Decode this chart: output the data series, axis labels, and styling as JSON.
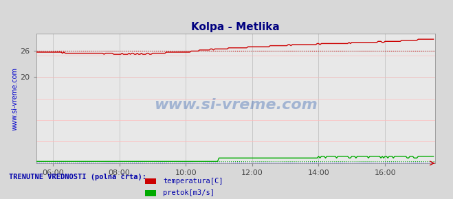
{
  "title": "Kolpa - Metlika",
  "title_color": "#000080",
  "title_fontsize": 11,
  "bg_color": "#d8d8d8",
  "plot_bg_color": "#e8e8e8",
  "xlabel": "",
  "ylabel_left": "www.si-vreme.com",
  "ylabel_color": "#0000cc",
  "xlim": [
    0,
    288
  ],
  "ylim": [
    0,
    30
  ],
  "yticks": [
    20,
    26
  ],
  "xtick_labels": [
    "06:00",
    "08:00",
    "10:00",
    "12:00",
    "14:00",
    "16:00"
  ],
  "xtick_positions": [
    12,
    60,
    108,
    156,
    204,
    252
  ],
  "grid_color": "#bbbbbb",
  "temp_color": "#cc0000",
  "flow_color": "#00aa00",
  "temp_avg_line": 26.0,
  "flow_avg_line": 0.5,
  "height_avg_line": 0.3,
  "watermark": "www.si-vreme.com",
  "watermark_color": "#2255aa",
  "watermark_alpha": 0.35,
  "legend_title": "TRENUTNE VREDNOSTI (polna črta):",
  "legend_title_color": "#0000aa",
  "legend_items": [
    "temperatura[C]",
    "pretok[m3/s]"
  ],
  "legend_colors": [
    "#cc0000",
    "#00aa00"
  ],
  "bottom_panel_color": "#c8d8e8"
}
